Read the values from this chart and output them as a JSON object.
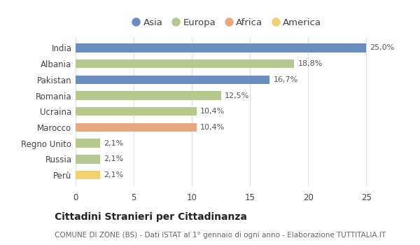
{
  "countries": [
    "India",
    "Albania",
    "Pakistan",
    "Romania",
    "Ucraina",
    "Marocco",
    "Regno Unito",
    "Russia",
    "Perù"
  ],
  "values": [
    25.0,
    18.8,
    16.7,
    12.5,
    10.4,
    10.4,
    2.1,
    2.1,
    2.1
  ],
  "labels": [
    "25,0%",
    "18,8%",
    "16,7%",
    "12,5%",
    "10,4%",
    "10,4%",
    "2,1%",
    "2,1%",
    "2,1%"
  ],
  "colors": [
    "#6b8cbe",
    "#b5c98e",
    "#6b8cbe",
    "#b5c98e",
    "#b5c98e",
    "#e8a882",
    "#b5c98e",
    "#b5c98e",
    "#f0d070"
  ],
  "legend": [
    {
      "label": "Asia",
      "color": "#6b8cbe"
    },
    {
      "label": "Europa",
      "color": "#b5c98e"
    },
    {
      "label": "Africa",
      "color": "#e8a882"
    },
    {
      "label": "America",
      "color": "#f0d070"
    }
  ],
  "xlim": [
    0,
    26
  ],
  "xticks": [
    0,
    5,
    10,
    15,
    20,
    25
  ],
  "title": "Cittadini Stranieri per Cittadinanza",
  "subtitle": "COMUNE DI ZONE (BS) - Dati ISTAT al 1° gennaio di ogni anno - Elaborazione TUTTITALIA.IT",
  "background_color": "#ffffff",
  "grid_color": "#e0e0e0",
  "bar_height": 0.55,
  "label_fontsize": 8.5,
  "tick_fontsize": 8.5,
  "value_fontsize": 8.0,
  "title_fontsize": 10,
  "subtitle_fontsize": 7.5,
  "legend_fontsize": 9.5
}
